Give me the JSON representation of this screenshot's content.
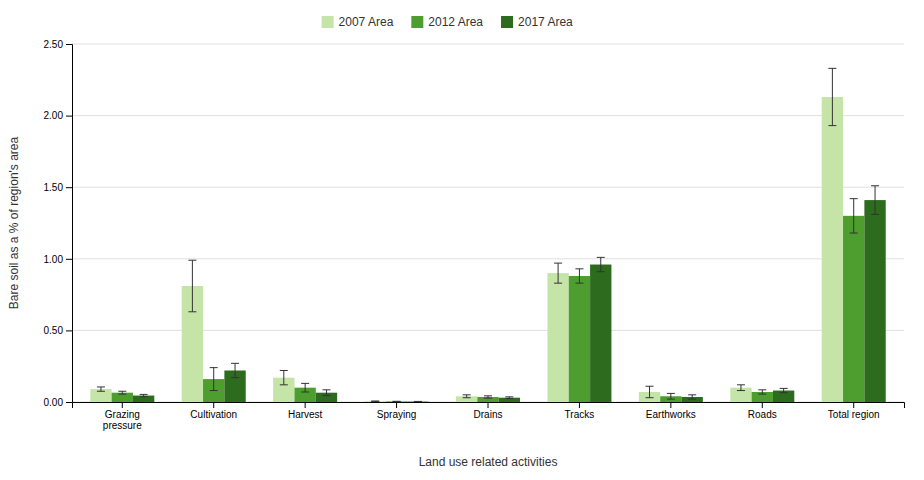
{
  "chart_data": {
    "type": "bar",
    "xlabel": "Land use related activities",
    "ylabel": "Bare soil as a % of region's area",
    "categories": [
      "Grazing\npressure",
      "Cultivation",
      "Harvest",
      "Spraying",
      "Drains",
      "Tracks",
      "Earthworks",
      "Roads",
      "Total region"
    ],
    "series": [
      {
        "name": "2007 Area",
        "color": "#c5e4a8",
        "values": [
          0.09,
          0.81,
          0.17,
          0.005,
          0.04,
          0.9,
          0.07,
          0.1,
          2.13
        ],
        "errors": [
          0.015,
          0.18,
          0.05,
          0.002,
          0.01,
          0.07,
          0.04,
          0.02,
          0.2
        ]
      },
      {
        "name": "2012 Area",
        "color": "#4d9e2f",
        "values": [
          0.065,
          0.16,
          0.1,
          0.004,
          0.035,
          0.88,
          0.04,
          0.07,
          1.3
        ],
        "errors": [
          0.01,
          0.08,
          0.03,
          0.001,
          0.008,
          0.05,
          0.02,
          0.015,
          0.12
        ]
      },
      {
        "name": "2017 Area",
        "color": "#2d6b1f",
        "values": [
          0.045,
          0.22,
          0.065,
          0.003,
          0.03,
          0.96,
          0.035,
          0.08,
          1.41
        ],
        "errors": [
          0.008,
          0.05,
          0.02,
          0.001,
          0.006,
          0.05,
          0.015,
          0.015,
          0.1
        ]
      }
    ],
    "ylim": [
      0,
      2.5
    ],
    "yticks": [
      {
        "value": 0,
        "label": "0.00"
      },
      {
        "value": 0.5,
        "label": "0.50"
      },
      {
        "value": 1,
        "label": "1.00"
      },
      {
        "value": 1.5,
        "label": "1.50"
      },
      {
        "value": 2,
        "label": "2.00"
      },
      {
        "value": 2.5,
        "label": "2.50"
      }
    ],
    "grid": true,
    "legend": "top"
  }
}
